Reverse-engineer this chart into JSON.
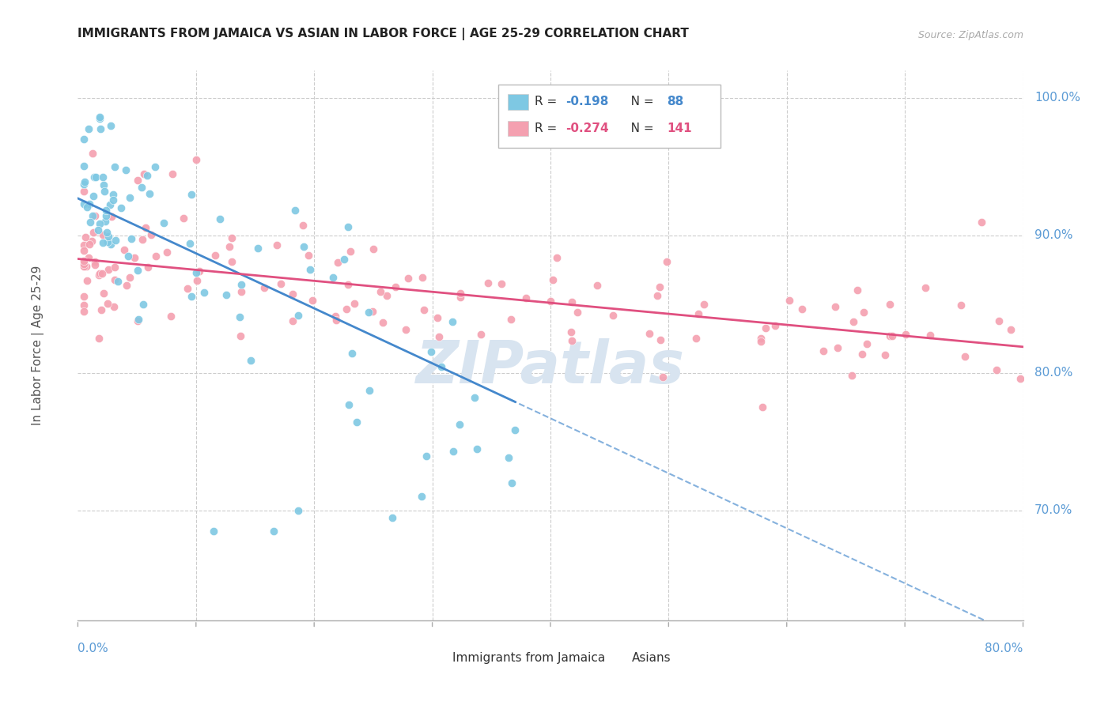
{
  "title": "IMMIGRANTS FROM JAMAICA VS ASIAN IN LABOR FORCE | AGE 25-29 CORRELATION CHART",
  "source": "Source: ZipAtlas.com",
  "ylabel": "In Labor Force | Age 25-29",
  "blue_color": "#7ec8e3",
  "pink_color": "#f4a0b0",
  "blue_line_color": "#4488cc",
  "pink_line_color": "#e05080",
  "watermark_color": "#d8e4f0",
  "title_color": "#222222",
  "axis_label_color": "#5b9bd5",
  "grid_color": "#cccccc",
  "background_color": "#ffffff",
  "xlim": [
    0.0,
    0.8
  ],
  "ylim": [
    0.62,
    1.02
  ],
  "r_blue": "-0.198",
  "n_blue": "88",
  "r_pink": "-0.274",
  "n_pink": "141"
}
